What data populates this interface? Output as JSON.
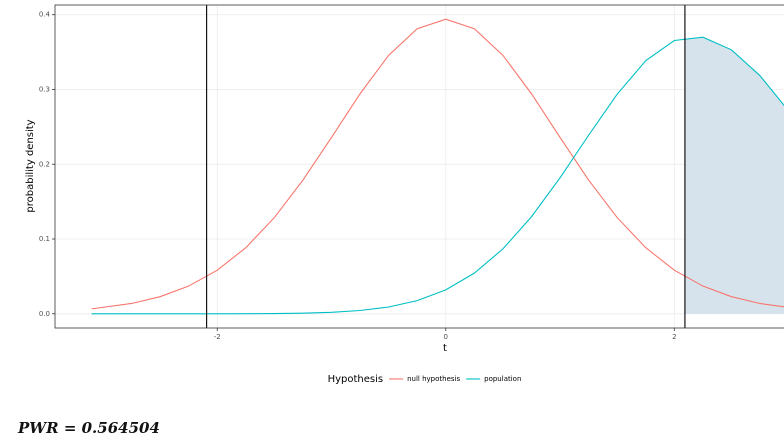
{
  "chart_data": {
    "type": "line",
    "x_label": "t",
    "y_label": "probability density",
    "x": [
      -3.1,
      -2.75,
      -2.5,
      -2.25,
      -2.0,
      -1.75,
      -1.5,
      -1.25,
      -1.0,
      -0.75,
      -0.5,
      -0.25,
      0,
      0.25,
      0.5,
      0.75,
      1.0,
      1.25,
      1.5,
      1.75,
      2.0,
      2.25,
      2.5,
      2.75,
      3.0
    ],
    "series": [
      {
        "name": "null hypothesis",
        "color": "#F8766D",
        "values": [
          0.0066,
          0.0138,
          0.0229,
          0.0371,
          0.0583,
          0.0884,
          0.1287,
          0.1788,
          0.2359,
          0.2943,
          0.3457,
          0.3813,
          0.394,
          0.3813,
          0.3457,
          0.2943,
          0.2359,
          0.1788,
          0.1287,
          0.0884,
          0.0583,
          0.0371,
          0.0229,
          0.0138,
          0.0084
        ]
      },
      {
        "name": "population",
        "color": "#00BFC4",
        "values": [
          0.0,
          0.0,
          0.0,
          0.0,
          0.0,
          0.0001,
          0.0003,
          0.0008,
          0.002,
          0.0044,
          0.0091,
          0.0176,
          0.032,
          0.0544,
          0.0868,
          0.1298,
          0.1818,
          0.2388,
          0.2937,
          0.3385,
          0.3655,
          0.3699,
          0.3531,
          0.3185,
          0.2714
        ]
      }
    ],
    "vlines": [
      -2.093,
      2.093
    ],
    "shade_color": "#d6e2ec",
    "legend_title": "Hypothesis",
    "legend_position": "bottom",
    "xlim": [
      -3.42,
      2.96
    ],
    "xticks": [
      -2,
      0,
      2
    ],
    "ylim": [
      -0.019,
      0.413
    ],
    "yticks": [
      {
        "value": 0,
        "label": "0.0"
      },
      0.1,
      0.2,
      0.3,
      0.4
    ],
    "grid": true,
    "annotation": "PWR = 0.564504"
  }
}
